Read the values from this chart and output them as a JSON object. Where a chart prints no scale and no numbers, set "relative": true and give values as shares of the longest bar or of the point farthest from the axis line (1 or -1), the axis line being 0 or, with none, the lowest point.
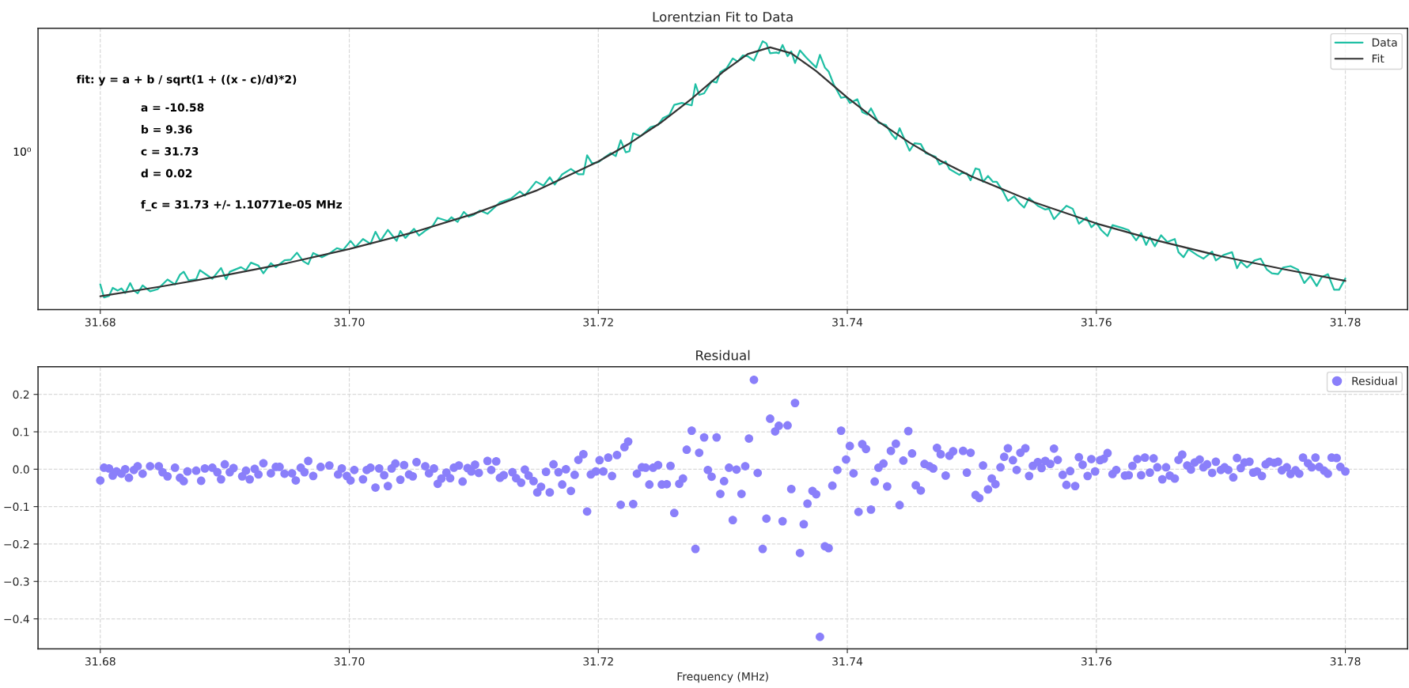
{
  "chart_data": [
    {
      "type": "line",
      "title": "Lorentzian Fit to Data",
      "relative": true,
      "grid": "x",
      "legend": "top right",
      "xlim": [
        31.675,
        31.785
      ],
      "xticks": [
        31.68,
        {
          "value": 31.7,
          "label": "31.70"
        },
        31.72,
        31.74,
        31.76,
        31.78
      ],
      "annotations": [
        "fit: y = a + b / sqrt(1 + ((x - c)/d)*2)",
        "a = -10.58",
        "b = 9.36",
        "c = 31.73",
        "d = 0.02",
        "f_c = 31.73 +/- 1.10771e-05 MHz",
        "10⁰"
      ],
      "series": [
        {
          "name": "Data",
          "color": "#1fbfa4",
          "x": [
            31.68,
            31.6803,
            31.6807,
            31.681,
            31.6814,
            31.6817,
            31.682,
            31.6824,
            31.6827,
            31.683,
            31.6834,
            31.684,
            31.6846,
            31.6854,
            31.686,
            31.6864,
            31.6867,
            31.6871,
            31.6877,
            31.688,
            31.689,
            31.6897,
            31.6901,
            31.6904,
            31.6913,
            31.6917,
            31.6921,
            31.6927,
            31.6931,
            31.6937,
            31.6941,
            31.6948,
            31.6953,
            31.6958,
            31.6963,
            31.6967,
            31.6971,
            31.6978,
            31.6984,
            31.699,
            31.6995,
            31.7001,
            31.7005,
            31.7011,
            31.7017,
            31.7021,
            31.7025,
            31.7031,
            31.7038,
            31.7041,
            31.7045,
            31.7052,
            31.7056,
            31.7062,
            31.7067,
            31.7071,
            31.7079,
            31.7082,
            31.7087,
            31.7092,
            31.7096,
            31.71,
            31.7105,
            31.7111,
            31.7116,
            31.7121,
            31.713,
            31.7137,
            31.7141,
            31.715,
            31.7156,
            31.7161,
            31.7165,
            31.7171,
            31.7178,
            31.7184,
            31.7188,
            31.7191,
            31.7195,
            31.72,
            31.7205,
            31.721,
            31.7214,
            31.7218,
            31.7222,
            31.7225,
            31.7228,
            31.7234,
            31.7242,
            31.7248,
            31.7252,
            31.7257,
            31.7261,
            31.7267,
            31.7275,
            31.7278,
            31.7281,
            31.7285,
            31.7291,
            31.7295,
            31.7298,
            31.7303,
            31.7308,
            31.7312,
            31.7316,
            31.732,
            31.7325,
            31.7332,
            31.7335,
            31.7338,
            31.7343,
            31.7345,
            31.7348,
            31.7352,
            31.7355,
            31.7358,
            31.7362,
            31.7367,
            31.7375,
            31.7378,
            31.7382,
            31.7385,
            31.7389,
            31.7395,
            31.7399,
            31.7402,
            31.7408,
            31.7412,
            31.7416,
            31.7419,
            31.7425,
            31.7431,
            31.7436,
            31.7439,
            31.7442,
            31.745,
            31.7454,
            31.7459,
            31.7463,
            31.7471,
            31.7474,
            31.7479,
            31.7482,
            31.749,
            31.7492,
            31.7496,
            31.7499,
            31.7503,
            31.7506,
            31.7509,
            31.7513,
            31.7517,
            31.752,
            31.7525,
            31.7529,
            31.7534,
            31.7538,
            31.7542,
            31.7546,
            31.7553,
            31.7559,
            31.7562,
            31.7566,
            31.757,
            31.7576,
            31.7581,
            31.7586,
            31.7592,
            31.7596,
            31.76,
            31.7604,
            31.7609,
            31.7613,
            31.7621,
            31.7626,
            31.7632,
            31.7636,
            31.764,
            31.7643,
            31.7647,
            31.7652,
            31.7657,
            31.7663,
            31.7666,
            31.767,
            31.7674,
            31.7681,
            31.7686,
            31.7693,
            31.7696,
            31.7702,
            31.7709,
            31.7713,
            31.7716,
            31.7721,
            31.7727,
            31.7732,
            31.7737,
            31.7741,
            31.7746,
            31.775,
            31.7756,
            31.7762,
            31.7767,
            31.7772,
            31.7777,
            31.7781,
            31.7786,
            31.7791,
            31.7795,
            31.78
          ],
          "values": [
            0.094,
            0.045,
            0.051,
            0.081,
            0.071,
            0.079,
            0.062,
            0.099,
            0.071,
            0.061,
            0.09,
            0.068,
            0.076,
            0.112,
            0.094,
            0.13,
            0.141,
            0.109,
            0.113,
            0.147,
            0.115,
            0.155,
            0.113,
            0.141,
            0.158,
            0.147,
            0.175,
            0.164,
            0.135,
            0.173,
            0.158,
            0.184,
            0.186,
            0.212,
            0.18,
            0.169,
            0.211,
            0.195,
            0.209,
            0.229,
            0.222,
            0.256,
            0.233,
            0.263,
            0.245,
            0.29,
            0.256,
            0.297,
            0.256,
            0.293,
            0.267,
            0.301,
            0.276,
            0.297,
            0.312,
            0.342,
            0.33,
            0.344,
            0.327,
            0.364,
            0.346,
            0.353,
            0.369,
            0.357,
            0.378,
            0.4,
            0.414,
            0.44,
            0.425,
            0.477,
            0.462,
            0.493,
            0.466,
            0.504,
            0.524,
            0.504,
            0.504,
            0.575,
            0.545,
            0.549,
            0.567,
            0.583,
            0.572,
            0.631,
            0.586,
            0.59,
            0.657,
            0.646,
            0.68,
            0.688,
            0.714,
            0.725,
            0.763,
            0.77,
            0.761,
            0.84,
            0.8,
            0.806,
            0.851,
            0.846,
            0.885,
            0.899,
            0.936,
            0.924,
            0.947,
            0.944,
            0.928,
            1.0,
            0.992,
            0.955,
            0.958,
            0.955,
            0.986,
            0.944,
            0.962,
            0.919,
            0.966,
            0.939,
            0.902,
            0.949,
            0.902,
            0.887,
            0.84,
            0.789,
            0.793,
            0.77,
            0.784,
            0.736,
            0.727,
            0.75,
            0.696,
            0.688,
            0.651,
            0.635,
            0.676,
            0.592,
            0.62,
            0.617,
            0.583,
            0.569,
            0.541,
            0.552,
            0.524,
            0.502,
            0.509,
            0.507,
            0.482,
            0.526,
            0.522,
            0.476,
            0.498,
            0.476,
            0.476,
            0.441,
            0.405,
            0.422,
            0.398,
            0.38,
            0.416,
            0.387,
            0.373,
            0.376,
            0.337,
            0.358,
            0.387,
            0.376,
            0.32,
            0.343,
            0.307,
            0.324,
            0.296,
            0.274,
            0.315,
            0.304,
            0.296,
            0.258,
            0.285,
            0.241,
            0.269,
            0.236,
            0.277,
            0.252,
            0.263,
            0.214,
            0.195,
            0.225,
            0.203,
            0.19,
            0.216,
            0.183,
            0.203,
            0.214,
            0.154,
            0.179,
            0.157,
            0.183,
            0.19,
            0.149,
            0.135,
            0.132,
            0.157,
            0.162,
            0.149,
            0.099,
            0.125,
            0.088,
            0.121,
            0.132,
            0.074,
            0.074,
            0.116
          ]
        },
        {
          "name": "Fit",
          "color": "#333333",
          "x": [
            31.68,
            31.685,
            31.69,
            31.695,
            31.7,
            31.705,
            31.71,
            31.715,
            31.72,
            31.7225,
            31.725,
            31.7275,
            31.73,
            31.732,
            31.7338,
            31.7355,
            31.7375,
            31.74,
            31.7425,
            31.745,
            31.7475,
            31.75,
            31.755,
            31.76,
            31.765,
            31.77,
            31.775,
            31.78
          ],
          "values": [
            0.05,
            0.087,
            0.128,
            0.173,
            0.226,
            0.286,
            0.357,
            0.443,
            0.552,
            0.619,
            0.696,
            0.786,
            0.885,
            0.952,
            0.977,
            0.955,
            0.889,
            0.79,
            0.7,
            0.622,
            0.554,
            0.496,
            0.4,
            0.321,
            0.256,
            0.199,
            0.151,
            0.107
          ]
        }
      ]
    },
    {
      "type": "scatter",
      "title": "Residual",
      "xlabel": "Frequency (MHz)",
      "grid": true,
      "legend": "top right",
      "marker": "circle",
      "xlim": [
        31.675,
        31.785
      ],
      "ylim": [
        -0.48,
        0.274
      ],
      "xticks": [
        31.68,
        {
          "value": 31.7,
          "label": "31.70"
        },
        31.72,
        31.74,
        31.76,
        31.78
      ],
      "yticks": [
        {
          "value": -0.4,
          "label": "−0.4"
        },
        {
          "value": -0.3,
          "label": "−0.3"
        },
        {
          "value": -0.2,
          "label": "−0.2"
        },
        {
          "value": -0.1,
          "label": "−0.1"
        },
        {
          "value": 0,
          "label": "0.0"
        },
        0.1,
        0.2
      ],
      "series": [
        {
          "name": "Residual",
          "color": "#8a7ffa",
          "x": [
            31.68,
            31.6803,
            31.6807,
            31.681,
            31.6813,
            31.6817,
            31.682,
            31.6823,
            31.6827,
            31.683,
            31.6834,
            31.684,
            31.6847,
            31.685,
            31.6854,
            31.686,
            31.6864,
            31.6867,
            31.687,
            31.6877,
            31.6881,
            31.6884,
            31.689,
            31.6894,
            31.6897,
            31.69,
            31.6904,
            31.6907,
            31.6914,
            31.6917,
            31.692,
            31.6924,
            31.6927,
            31.6931,
            31.6937,
            31.6941,
            31.6944,
            31.6948,
            31.6954,
            31.6957,
            31.6961,
            31.6964,
            31.6967,
            31.6971,
            31.6977,
            31.6984,
            31.6991,
            31.6994,
            31.6998,
            31.7001,
            31.7004,
            31.7011,
            31.7014,
            31.7017,
            31.7021,
            31.7024,
            31.7028,
            31.7031,
            31.7034,
            31.7037,
            31.7041,
            31.7044,
            31.7048,
            31.7051,
            31.7054,
            31.7061,
            31.7064,
            31.7068,
            31.7071,
            31.7074,
            31.7078,
            31.7081,
            31.7084,
            31.7088,
            31.7091,
            31.7095,
            31.7098,
            31.7101,
            31.7104,
            31.7111,
            31.7114,
            31.7118,
            31.7121,
            31.7124,
            31.7131,
            31.7134,
            31.7138,
            31.7141,
            31.7144,
            31.7148,
            31.7151,
            31.7154,
            31.7158,
            31.7161,
            31.7164,
            31.7168,
            31.7171,
            31.7174,
            31.7178,
            31.7181,
            31.7184,
            31.7188,
            31.7191,
            31.7194,
            31.7198,
            31.7201,
            31.7204,
            31.7208,
            31.7211,
            31.7215,
            31.7218,
            31.7221,
            31.7224,
            31.7228,
            31.7231,
            31.7235,
            31.7238,
            31.7241,
            31.7244,
            31.7248,
            31.7251,
            31.7255,
            31.7258,
            31.7261,
            31.7265,
            31.7268,
            31.7271,
            31.7275,
            31.7278,
            31.7281,
            31.7285,
            31.7288,
            31.7291,
            31.7295,
            31.7298,
            31.7301,
            31.7305,
            31.7308,
            31.7311,
            31.7315,
            31.7318,
            31.7321,
            31.7325,
            31.7328,
            31.7332,
            31.7335,
            31.7338,
            31.7342,
            31.7345,
            31.7348,
            31.7352,
            31.7355,
            31.7358,
            31.7362,
            31.7365,
            31.7368,
            31.7372,
            31.7375,
            31.7378,
            31.7382,
            31.7385,
            31.7388,
            31.7392,
            31.7395,
            31.7399,
            31.7402,
            31.7405,
            31.7409,
            31.7412,
            31.7415,
            31.7419,
            31.7422,
            31.7425,
            31.7429,
            31.7432,
            31.7435,
            31.7439,
            31.7442,
            31.7445,
            31.7449,
            31.7452,
            31.7455,
            31.7459,
            31.7462,
            31.7466,
            31.7469,
            31.7472,
            31.7475,
            31.7479,
            31.7482,
            31.7485,
            31.7493,
            31.7496,
            31.7499,
            31.7503,
            31.7506,
            31.7509,
            31.7513,
            31.7516,
            31.7519,
            31.7523,
            31.7526,
            31.7529,
            31.7533,
            31.7536,
            31.7539,
            31.7543,
            31.7546,
            31.7549,
            31.7553,
            31.7556,
            31.7559,
            31.7563,
            31.7566,
            31.7569,
            31.7573,
            31.7576,
            31.7579,
            31.7583,
            31.7586,
            31.7589,
            31.7593,
            31.7596,
            31.7599,
            31.7603,
            31.7606,
            31.7609,
            31.7613,
            31.7616,
            31.7623,
            31.7626,
            31.7629,
            31.7633,
            31.7636,
            31.7639,
            31.7643,
            31.7646,
            31.7649,
            31.7653,
            31.7656,
            31.7659,
            31.7663,
            31.7666,
            31.7669,
            31.7673,
            31.7676,
            31.7679,
            31.7683,
            31.7686,
            31.7689,
            31.7693,
            31.7696,
            31.77,
            31.7703,
            31.7706,
            31.771,
            31.7713,
            31.7716,
            31.7719,
            31.7723,
            31.7726,
            31.7729,
            31.7733,
            31.7736,
            31.7739,
            31.7743,
            31.7746,
            31.7749,
            31.7753,
            31.7756,
            31.776,
            31.7763,
            31.7766,
            31.777,
            31.7773,
            31.7776,
            31.7779,
            31.7783,
            31.7786,
            31.7789,
            31.7793,
            31.7796,
            31.78
          ],
          "values": [
            -0.03,
            0.004,
            0.002,
            -0.017,
            -0.006,
            -0.012,
            0.0,
            -0.023,
            -0.002,
            0.008,
            -0.012,
            0.008,
            0.008,
            -0.008,
            -0.019,
            0.004,
            -0.023,
            -0.032,
            -0.006,
            -0.004,
            -0.031,
            0.002,
            0.004,
            -0.008,
            -0.027,
            0.013,
            -0.008,
            0.003,
            -0.019,
            -0.004,
            -0.027,
            0.001,
            -0.014,
            0.016,
            -0.011,
            0.006,
            0.006,
            -0.012,
            -0.011,
            -0.03,
            0.004,
            -0.008,
            0.022,
            -0.018,
            0.006,
            0.01,
            -0.014,
            0.002,
            -0.018,
            -0.03,
            -0.002,
            -0.027,
            -0.002,
            0.004,
            -0.049,
            0.002,
            -0.016,
            -0.045,
            0.002,
            0.015,
            -0.028,
            0.011,
            -0.014,
            -0.019,
            0.019,
            0.008,
            -0.011,
            0.002,
            -0.039,
            -0.025,
            -0.009,
            -0.024,
            0.004,
            0.01,
            -0.033,
            0.003,
            -0.006,
            0.012,
            -0.01,
            0.022,
            -0.002,
            0.021,
            -0.023,
            -0.016,
            -0.008,
            -0.024,
            -0.036,
            -0.001,
            -0.017,
            -0.032,
            -0.062,
            -0.047,
            -0.007,
            -0.062,
            0.013,
            -0.008,
            -0.041,
            0.0,
            -0.058,
            -0.015,
            0.025,
            0.04,
            -0.113,
            -0.014,
            -0.006,
            0.024,
            -0.006,
            0.031,
            -0.018,
            0.038,
            -0.095,
            0.059,
            0.074,
            -0.093,
            -0.012,
            0.005,
            0.004,
            -0.041,
            0.004,
            0.011,
            -0.041,
            -0.04,
            0.009,
            -0.117,
            -0.039,
            -0.025,
            0.052,
            0.103,
            -0.213,
            0.044,
            0.085,
            -0.002,
            -0.02,
            0.085,
            -0.066,
            -0.032,
            0.004,
            -0.136,
            -0.001,
            -0.066,
            0.008,
            0.082,
            0.239,
            -0.01,
            -0.213,
            -0.132,
            0.135,
            0.101,
            0.116,
            -0.139,
            0.117,
            -0.053,
            0.177,
            -0.224,
            -0.147,
            -0.092,
            -0.058,
            -0.067,
            -0.448,
            -0.206,
            -0.211,
            -0.044,
            -0.002,
            0.103,
            0.026,
            0.062,
            -0.011,
            -0.114,
            0.067,
            0.054,
            -0.108,
            -0.033,
            0.004,
            0.015,
            -0.046,
            0.049,
            0.068,
            -0.096,
            0.023,
            0.102,
            0.042,
            -0.043,
            -0.057,
            0.014,
            0.008,
            0.002,
            0.057,
            0.04,
            -0.017,
            0.036,
            0.048,
            0.049,
            -0.009,
            0.044,
            -0.069,
            -0.077,
            0.01,
            -0.054,
            -0.025,
            -0.04,
            0.005,
            0.033,
            0.056,
            0.024,
            -0.002,
            0.044,
            0.056,
            -0.018,
            0.009,
            0.019,
            0.003,
            0.022,
            0.014,
            0.055,
            0.025,
            -0.015,
            -0.042,
            -0.005,
            -0.045,
            0.032,
            0.012,
            -0.018,
            0.027,
            -0.006,
            0.024,
            0.028,
            0.043,
            -0.013,
            -0.002,
            -0.017,
            -0.016,
            0.009,
            0.027,
            -0.016,
            0.031,
            -0.009,
            0.029,
            0.005,
            -0.027,
            0.005,
            -0.017,
            -0.025,
            0.025,
            0.039,
            0.01,
            -0.001,
            0.018,
            0.026,
            0.005,
            0.013,
            -0.01,
            0.02,
            -0.002,
            0.005,
            -0.002,
            -0.022,
            0.03,
            0.003,
            0.018,
            0.02,
            -0.009,
            -0.006,
            -0.018,
            0.013,
            0.02,
            0.017,
            0.02,
            -0.003,
            0.005,
            -0.013,
            -0.003,
            -0.012,
            0.031,
            0.016,
            0.005,
            0.031,
            0.006,
            -0.004,
            -0.012,
            0.031,
            0.03,
            0.006,
            -0.006
          ]
        }
      ]
    }
  ]
}
